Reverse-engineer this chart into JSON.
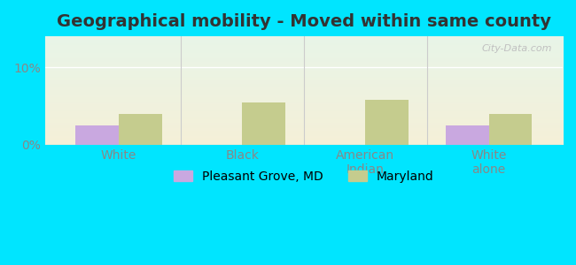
{
  "title": "Geographical mobility - Moved within same county",
  "categories": [
    "White",
    "Black",
    "American\nIndian",
    "White\nalone"
  ],
  "pleasant_grove_values": [
    2.5,
    0,
    0,
    2.5
  ],
  "maryland_values": [
    4.0,
    5.5,
    5.8,
    4.0
  ],
  "pleasant_grove_color": "#c9a8e0",
  "maryland_color": "#c5cc8e",
  "ylim": [
    0,
    14
  ],
  "yticks": [
    0,
    10
  ],
  "ytick_labels": [
    "0%",
    "10%"
  ],
  "bg_outer": "#00e5ff",
  "bar_width": 0.35,
  "legend_labels": [
    "Pleasant Grove, MD",
    "Maryland"
  ],
  "watermark": "City-Data.com",
  "title_fontsize": 14,
  "tick_fontsize": 10,
  "legend_fontsize": 10,
  "grad_top": "#e8f5e8",
  "grad_bottom": "#f5f0d8"
}
